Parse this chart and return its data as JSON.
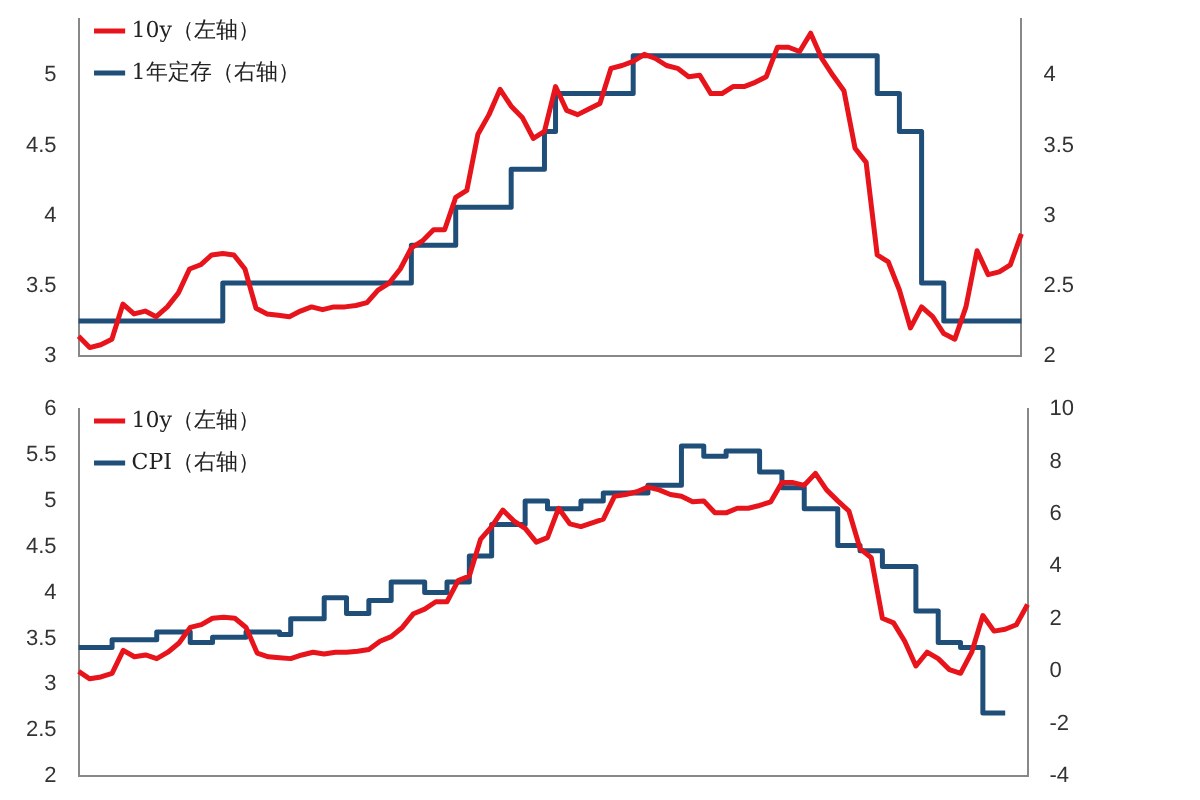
{
  "chart_data": [
    {
      "type": "line",
      "categories": [
        null,
        null,
        null,
        null,
        null,
        null,
        null,
        null,
        null,
        null,
        null,
        null,
        null,
        null,
        null,
        null,
        null,
        null,
        null,
        null,
        null,
        null,
        null,
        null,
        null,
        null,
        null,
        null,
        null,
        null,
        null,
        null,
        null,
        null,
        null,
        null,
        null,
        null,
        null,
        null,
        null,
        null,
        null,
        null,
        null,
        null,
        null,
        null,
        null,
        null,
        null,
        null,
        null,
        null,
        null,
        null,
        null,
        null,
        null,
        null,
        null,
        null,
        null,
        null,
        null,
        null,
        null,
        null,
        null,
        null,
        null,
        null,
        null,
        null,
        null,
        null,
        null,
        null,
        null,
        null,
        null,
        null,
        null,
        null,
        null,
        null
      ],
      "series": [
        {
          "name": "10y（左轴）",
          "color": "#e8141b",
          "type": "line",
          "values": [
            3.14,
            3.06,
            3.08,
            3.12,
            3.37,
            3.3,
            3.32,
            3.28,
            3.35,
            3.45,
            3.62,
            3.65,
            3.72,
            3.73,
            3.72,
            3.62,
            3.34,
            3.3,
            3.29,
            3.28,
            3.32,
            3.35,
            3.33,
            3.35,
            3.35,
            3.36,
            3.38,
            3.47,
            3.52,
            3.62,
            3.77,
            3.82,
            3.9,
            3.9,
            4.13,
            4.18,
            4.58,
            4.72,
            4.9,
            4.78,
            4.7,
            4.55,
            4.6,
            4.92,
            4.75,
            4.72,
            4.76,
            4.8,
            5.05,
            5.07,
            5.1,
            5.15,
            5.12,
            5.07,
            5.05,
            4.99,
            5.0,
            4.87,
            4.87,
            4.92,
            4.92,
            4.95,
            4.99,
            5.2,
            5.2,
            5.17,
            5.3,
            5.12,
            5.0,
            4.89,
            4.48,
            4.38,
            3.72,
            3.67,
            3.47,
            3.2,
            3.35,
            3.28,
            3.16,
            3.12,
            3.35,
            3.75,
            3.58,
            3.6,
            3.65,
            3.87
          ]
        },
        {
          "name": "1年定存（右轴）",
          "color": "#1f4e79",
          "type": "step",
          "axis": "y2",
          "values": [
            2.25,
            2.25,
            2.25,
            2.25,
            2.25,
            2.25,
            2.25,
            2.25,
            2.25,
            2.25,
            2.25,
            2.25,
            2.25,
            2.52,
            2.52,
            2.52,
            2.52,
            2.52,
            2.52,
            2.52,
            2.52,
            2.52,
            2.52,
            2.52,
            2.52,
            2.52,
            2.52,
            2.52,
            2.52,
            2.52,
            2.79,
            2.79,
            2.79,
            2.79,
            3.06,
            3.06,
            3.06,
            3.06,
            3.06,
            3.33,
            3.33,
            3.33,
            3.6,
            3.87,
            3.87,
            3.87,
            3.87,
            3.87,
            3.87,
            3.87,
            4.14,
            4.14,
            4.14,
            4.14,
            4.14,
            4.14,
            4.14,
            4.14,
            4.14,
            4.14,
            4.14,
            4.14,
            4.14,
            4.14,
            4.14,
            4.14,
            4.14,
            4.14,
            4.14,
            4.14,
            4.14,
            4.14,
            3.87,
            3.87,
            3.6,
            3.6,
            2.52,
            2.52,
            2.25,
            2.25,
            2.25,
            2.25,
            2.25,
            2.25,
            2.25,
            2.25
          ]
        }
      ],
      "ylim": [
        3,
        5.4
      ],
      "yticks": [
        {
          "value": 3,
          "label": "3"
        },
        3.5,
        4,
        4.5,
        5
      ],
      "y2lim": [
        2,
        4.4
      ],
      "y2ticks": [
        2,
        2.5,
        3,
        3.5,
        4
      ],
      "tick_labels": "y",
      "legend": "top left",
      "marker": "none",
      "grid": false
    },
    {
      "type": "line",
      "categories": [
        null,
        null,
        null,
        null,
        null,
        null,
        null,
        null,
        null,
        null,
        null,
        null,
        null,
        null,
        null,
        null,
        null,
        null,
        null,
        null,
        null,
        null,
        null,
        null,
        null,
        null,
        null,
        null,
        null,
        null,
        null,
        null,
        null,
        null,
        null,
        null,
        null,
        null,
        null,
        null,
        null,
        null,
        null,
        null,
        null,
        null,
        null,
        null,
        null,
        null,
        null,
        null,
        null,
        null,
        null,
        null,
        null,
        null,
        null,
        null,
        null,
        null,
        null,
        null,
        null,
        null,
        null,
        null,
        null,
        null,
        null,
        null,
        null,
        null,
        null,
        null,
        null,
        null,
        null,
        null,
        null,
        null,
        null,
        null,
        null,
        null
      ],
      "series": [
        {
          "name": "10y（左轴）",
          "color": "#e8141b",
          "type": "line",
          "values": [
            3.14,
            3.06,
            3.08,
            3.12,
            3.37,
            3.3,
            3.32,
            3.28,
            3.35,
            3.45,
            3.62,
            3.65,
            3.72,
            3.73,
            3.72,
            3.62,
            3.34,
            3.3,
            3.29,
            3.28,
            3.32,
            3.35,
            3.33,
            3.35,
            3.35,
            3.36,
            3.38,
            3.47,
            3.52,
            3.62,
            3.77,
            3.82,
            3.9,
            3.9,
            4.13,
            4.18,
            4.58,
            4.72,
            4.9,
            4.78,
            4.7,
            4.55,
            4.6,
            4.92,
            4.75,
            4.72,
            4.76,
            4.8,
            5.05,
            5.07,
            5.1,
            5.15,
            5.12,
            5.07,
            5.05,
            4.99,
            5.0,
            4.87,
            4.87,
            4.92,
            4.92,
            4.95,
            4.99,
            5.2,
            5.2,
            5.17,
            5.3,
            5.12,
            5.0,
            4.89,
            4.48,
            4.38,
            3.72,
            3.67,
            3.47,
            3.2,
            3.35,
            3.28,
            3.16,
            3.12,
            3.35,
            3.75,
            3.58,
            3.6,
            3.65,
            3.87
          ]
        },
        {
          "name": "CPI（右轴）",
          "color": "#1f4e79",
          "type": "step",
          "axis": "y2",
          "values": [
            0.9,
            0.9,
            0.9,
            1.2,
            1.2,
            1.2,
            1.2,
            1.5,
            1.5,
            1.5,
            1.1,
            1.1,
            1.3,
            1.3,
            1.3,
            1.5,
            1.5,
            1.5,
            1.4,
            2.0,
            2.0,
            2.0,
            2.8,
            2.8,
            2.2,
            2.2,
            2.7,
            2.7,
            3.4,
            3.4,
            3.4,
            3.0,
            3.0,
            3.4,
            3.4,
            4.4,
            4.4,
            5.6,
            5.6,
            5.6,
            6.5,
            6.5,
            6.2,
            6.2,
            6.2,
            6.5,
            6.5,
            6.8,
            6.8,
            6.8,
            6.8,
            7.1,
            7.1,
            7.1,
            8.6,
            8.6,
            8.2,
            8.2,
            8.4,
            8.4,
            8.4,
            7.6,
            7.6,
            7.0,
            7.0,
            6.2,
            6.2,
            6.2,
            4.8,
            4.8,
            4.6,
            4.6,
            4.0,
            4.0,
            4.0,
            2.3,
            2.3,
            1.1,
            1.1,
            0.9,
            0.9,
            -1.6,
            -1.6,
            -1.6,
            null,
            null
          ]
        }
      ],
      "ylim": [
        2,
        6
      ],
      "yticks": [
        2,
        2.5,
        3,
        3.5,
        4,
        4.5,
        5,
        5.5,
        6
      ],
      "y2lim": [
        -4,
        10
      ],
      "y2ticks": [
        -4,
        -2,
        0,
        2,
        4,
        6,
        8,
        10
      ],
      "tick_labels": "y",
      "legend": "top left",
      "marker": "none",
      "grid": false
    }
  ]
}
